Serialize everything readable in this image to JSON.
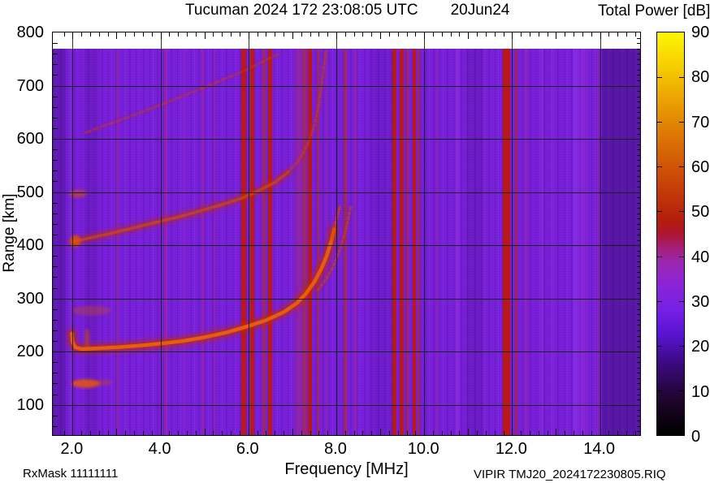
{
  "header": {
    "title": "Tucuman 2024 172 23:08:05 UTC",
    "date": "20Jun24",
    "colorbar_title": "Total Power [dB]"
  },
  "footer": {
    "rx_mask": "RxMask 11111111",
    "file_label": "VIPIR  TMJ20_2024172230805.RIQ"
  },
  "axes": {
    "xlabel": "Frequency [MHz]",
    "ylabel": "Range [km]",
    "x_min": 1.55,
    "x_max": 14.95,
    "y_min": 40,
    "y_max": 800,
    "x_tick_values": [
      2,
      4,
      6,
      8,
      10,
      12,
      14
    ],
    "x_tick_labels": [
      "2.0",
      "4.0",
      "6.0",
      "8.0",
      "10.0",
      "12.0",
      "14.0"
    ],
    "y_tick_values": [
      100,
      200,
      300,
      400,
      500,
      600,
      700,
      800
    ],
    "y_tick_labels": [
      "100",
      "200",
      "300",
      "400",
      "500",
      "600",
      "700",
      "800"
    ],
    "x_minor_step": 0.2,
    "y_minor_step_left": 20,
    "y_minor_step_right": 10,
    "grid_color": "rgba(10,30,10,0.88)"
  },
  "colorbar": {
    "min": 0,
    "max": 90,
    "tick_values": [
      0,
      10,
      20,
      30,
      40,
      50,
      60,
      70,
      80,
      90
    ],
    "tick_labels": [
      "0",
      "10",
      "20",
      "30",
      "40",
      "50",
      "60",
      "70",
      "80",
      "90"
    ],
    "gradient": [
      [
        0,
        "#000000"
      ],
      [
        0.09,
        "#20052e"
      ],
      [
        0.18,
        "#3c0a80"
      ],
      [
        0.25,
        "#5a14d0"
      ],
      [
        0.31,
        "#7520e6"
      ],
      [
        0.37,
        "#8a24d8"
      ],
      [
        0.43,
        "#9c27b0"
      ],
      [
        0.47,
        "#a51f70"
      ],
      [
        0.5,
        "#ab1530"
      ],
      [
        0.53,
        "#b31c0e"
      ],
      [
        0.6,
        "#c23808"
      ],
      [
        0.68,
        "#d15a06"
      ],
      [
        0.76,
        "#df7e04"
      ],
      [
        0.85,
        "#edab02"
      ],
      [
        0.93,
        "#f8d401"
      ],
      [
        1,
        "#fdf703"
      ]
    ]
  },
  "chart_data": {
    "type": "heatmap",
    "description": "VIPIR ionogram: total echo power (dB) vs sounding frequency and virtual range",
    "title": "Tucuman 2024 172 23:08:05 UTC 20Jun24",
    "xlabel": "Frequency [MHz]",
    "ylabel": "Range [km]",
    "colorbar_label": "Total Power [dB]",
    "x_range_mhz": [
      1.55,
      14.95
    ],
    "y_range_km": [
      40,
      800
    ],
    "color_range_db": [
      0,
      90
    ],
    "background_db": 25,
    "background_color": "#7a20dd",
    "data_top_km": 768,
    "traces": [
      {
        "name": "F-trace-1st-hop",
        "points": [
          [
            1.98,
            234
          ],
          [
            2.0,
            218
          ],
          [
            2.06,
            208
          ],
          [
            2.2,
            205
          ],
          [
            2.5,
            206
          ],
          [
            3.0,
            208
          ],
          [
            3.5,
            211
          ],
          [
            4.0,
            215
          ],
          [
            4.5,
            220
          ],
          [
            5.0,
            227
          ],
          [
            5.5,
            236
          ],
          [
            6.0,
            248
          ],
          [
            6.4,
            259
          ],
          [
            6.8,
            274
          ],
          [
            7.1,
            291
          ],
          [
            7.3,
            308
          ],
          [
            7.5,
            331
          ],
          [
            7.65,
            354
          ],
          [
            7.78,
            380
          ],
          [
            7.88,
            406
          ],
          [
            7.95,
            430
          ]
        ],
        "width": 4.5,
        "core": "#ea5f0a",
        "glow": "#bd2d04",
        "opacity": 0.95,
        "style": "solid",
        "halo": true
      },
      {
        "name": "F-trace-1st-hop-cusp-fade",
        "points": [
          [
            7.9,
            414
          ],
          [
            7.97,
            438
          ],
          [
            8.04,
            460
          ],
          [
            8.09,
            474
          ]
        ],
        "width": 3,
        "core": "#d84e08",
        "glow": "#bd2d04",
        "opacity": 0.55,
        "style": "dotted",
        "halo": false
      },
      {
        "name": "F-trace-x-mode-branch",
        "points": [
          [
            7.58,
            316
          ],
          [
            7.78,
            338
          ],
          [
            7.95,
            364
          ],
          [
            8.1,
            396
          ],
          [
            8.2,
            424
          ],
          [
            8.28,
            452
          ],
          [
            8.33,
            472
          ]
        ],
        "width": 2.6,
        "core": "#d34a08",
        "glow": "#bd2d04",
        "opacity": 0.5,
        "style": "dotted",
        "halo": false
      },
      {
        "name": "F-trace-2nd-hop",
        "points": [
          [
            2.0,
            406
          ],
          [
            2.3,
            412
          ],
          [
            2.8,
            421
          ],
          [
            3.3,
            431
          ],
          [
            3.8,
            441
          ],
          [
            4.3,
            451
          ],
          [
            4.8,
            462
          ],
          [
            5.3,
            474
          ],
          [
            5.8,
            487
          ],
          [
            6.2,
            501
          ],
          [
            6.6,
            518
          ],
          [
            6.9,
            537
          ]
        ],
        "width": 3.4,
        "core": "#d54e0a",
        "glow": "#bd2d04",
        "opacity": 0.6,
        "style": "solid",
        "halo": true
      },
      {
        "name": "F-trace-2nd-hop-cusp",
        "points": [
          [
            6.9,
            537
          ],
          [
            7.15,
            560
          ],
          [
            7.35,
            590
          ],
          [
            7.5,
            625
          ],
          [
            7.6,
            665
          ],
          [
            7.68,
            708
          ],
          [
            7.73,
            748
          ],
          [
            7.76,
            768
          ]
        ],
        "width": 2.8,
        "core": "#cc4610",
        "glow": "#bd2d04",
        "opacity": 0.45,
        "style": "dotted",
        "halo": false
      },
      {
        "name": "F-trace-3rd-hop-partial",
        "points": [
          [
            2.3,
            612
          ],
          [
            2.9,
            630
          ],
          [
            3.5,
            648
          ],
          [
            4.1,
            667
          ],
          [
            4.7,
            687
          ],
          [
            5.3,
            707
          ],
          [
            5.9,
            728
          ],
          [
            6.4,
            748
          ],
          [
            6.7,
            760
          ]
        ],
        "width": 2.4,
        "core": "#c64612",
        "glow": "#bd2d04",
        "opacity": 0.38,
        "style": "dashed",
        "halo": false
      }
    ],
    "blobs": [
      {
        "name": "E-layer-echo",
        "f": 2.3,
        "range_km": 140,
        "f_halfwidth": 0.33,
        "range_halfwidth_km": 8,
        "color": "#e25408",
        "opacity": 0.88
      },
      {
        "name": "E-layer-echo-tail",
        "f": 2.72,
        "range_km": 142,
        "f_halfwidth": 0.18,
        "range_halfwidth_km": 5,
        "color": "#d24a10",
        "opacity": 0.4
      },
      {
        "name": "echo-blob-275km",
        "f": 2.42,
        "range_km": 277,
        "f_halfwidth": 0.45,
        "range_halfwidth_km": 9,
        "color": "#c44a18",
        "opacity": 0.38
      },
      {
        "name": "echo-blob-500km",
        "f": 2.12,
        "range_km": 497,
        "f_halfwidth": 0.2,
        "range_halfwidth_km": 8,
        "color": "#d04a10",
        "opacity": 0.55
      },
      {
        "name": "trace-start-spur",
        "f": 2.33,
        "range_km": 224,
        "f_halfwidth": 0.06,
        "range_halfwidth_km": 20,
        "color": "#d8500c",
        "opacity": 0.5
      },
      {
        "name": "second-hop-start-blob",
        "f": 2.06,
        "range_km": 408,
        "f_halfwidth": 0.12,
        "range_halfwidth_km": 11,
        "color": "#e25408",
        "opacity": 0.8
      }
    ],
    "rfi_levels": {
      "strong": "rgba(191,24,6,0.93)",
      "medium": "rgba(180,45,12,0.6)",
      "faint": "rgba(185,45,95,0.33)",
      "tint": "rgba(195,60,205,0.22)"
    },
    "rfi_lines": [
      {
        "f": 3.02,
        "w": 0.05,
        "level": "faint"
      },
      {
        "f": 4.12,
        "w": 0.06,
        "level": "faint"
      },
      {
        "f": 4.55,
        "w": 0.05,
        "level": "tint"
      },
      {
        "f": 4.96,
        "w": 0.06,
        "level": "faint"
      },
      {
        "f": 5.23,
        "w": 0.05,
        "level": "faint"
      },
      {
        "f": 5.89,
        "w": 0.1,
        "level": "strong"
      },
      {
        "f": 6.09,
        "w": 0.09,
        "level": "strong"
      },
      {
        "f": 6.35,
        "w": 0.07,
        "level": "medium"
      },
      {
        "f": 6.5,
        "w": 0.09,
        "level": "strong"
      },
      {
        "f": 7.16,
        "w": 0.22,
        "level": "faint"
      },
      {
        "f": 7.28,
        "w": 0.06,
        "level": "medium"
      },
      {
        "f": 7.4,
        "w": 0.09,
        "level": "strong"
      },
      {
        "f": 7.59,
        "w": 0.06,
        "level": "medium"
      },
      {
        "f": 7.78,
        "w": 0.05,
        "level": "faint"
      },
      {
        "f": 8.2,
        "w": 0.07,
        "level": "medium"
      },
      {
        "f": 8.43,
        "w": 0.05,
        "level": "faint"
      },
      {
        "f": 9.33,
        "w": 0.09,
        "level": "strong"
      },
      {
        "f": 9.49,
        "w": 0.09,
        "level": "strong"
      },
      {
        "f": 9.62,
        "w": 0.06,
        "level": "medium"
      },
      {
        "f": 9.77,
        "w": 0.08,
        "level": "strong"
      },
      {
        "f": 9.88,
        "w": 0.05,
        "level": "medium"
      },
      {
        "f": 10.29,
        "w": 0.05,
        "level": "faint"
      },
      {
        "f": 10.77,
        "w": 0.09,
        "level": "tint"
      },
      {
        "f": 11.88,
        "w": 0.17,
        "level": "strong"
      },
      {
        "f": 12.09,
        "w": 0.06,
        "level": "medium"
      },
      {
        "f": 12.31,
        "w": 0.05,
        "level": "faint"
      },
      {
        "f": 12.69,
        "w": 0.06,
        "level": "tint"
      },
      {
        "f": 12.9,
        "w": 0.05,
        "level": "tint"
      },
      {
        "f": 13.65,
        "w": 0.12,
        "level": "tint"
      },
      {
        "f": 13.95,
        "w": 0.05,
        "level": "faint"
      }
    ],
    "shade_bands": [
      {
        "f0": 1.55,
        "f1": 1.85,
        "tone": "dark",
        "alpha": 0.22
      },
      {
        "f0": 2.25,
        "f1": 2.6,
        "tone": "dark",
        "alpha": 0.1
      },
      {
        "f0": 8.75,
        "f1": 9.28,
        "tone": "dark",
        "alpha": 0.08
      },
      {
        "f0": 10.95,
        "f1": 11.35,
        "tone": "dark",
        "alpha": 0.12
      },
      {
        "f0": 13.38,
        "f1": 13.52,
        "tone": "light",
        "alpha": 0.25
      },
      {
        "f0": 14.05,
        "f1": 14.95,
        "tone": "dark",
        "alpha": 0.3
      }
    ]
  }
}
